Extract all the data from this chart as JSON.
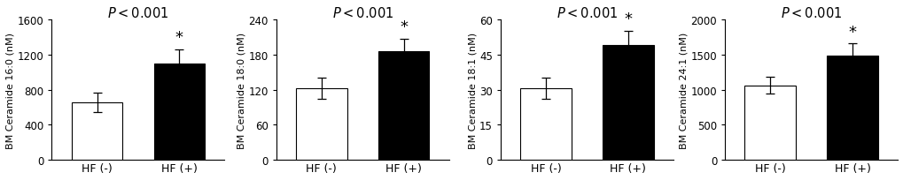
{
  "panels": [
    {
      "ylabel": "BM Ceramide 16:0 (nM)",
      "title": "$P < 0.001$",
      "ylim": [
        0,
        1600
      ],
      "yticks": [
        0,
        400,
        800,
        1200,
        1600
      ],
      "bars": [
        {
          "label": "HF (-)",
          "value": 660,
          "err": 110,
          "color": "white"
        },
        {
          "label": "HF (+)",
          "value": 1100,
          "err": 160,
          "color": "black"
        }
      ],
      "star_bar": 1
    },
    {
      "ylabel": "BM Ceramide 18:0 (nM)",
      "title": "$P < 0.001$",
      "ylim": [
        0,
        240
      ],
      "yticks": [
        0,
        60,
        120,
        180,
        240
      ],
      "bars": [
        {
          "label": "HF (-)",
          "value": 122,
          "err": 18,
          "color": "white"
        },
        {
          "label": "HF (+)",
          "value": 185,
          "err": 22,
          "color": "black"
        }
      ],
      "star_bar": 1
    },
    {
      "ylabel": "BM Ceramide 18:1 (nM)",
      "title": "$P < 0.001$",
      "ylim": [
        0,
        60
      ],
      "yticks": [
        0,
        15,
        30,
        45,
        60
      ],
      "bars": [
        {
          "label": "HF (-)",
          "value": 30.5,
          "err": 4.5,
          "color": "white"
        },
        {
          "label": "HF (+)",
          "value": 49,
          "err": 6,
          "color": "black"
        }
      ],
      "star_bar": 1
    },
    {
      "ylabel": "BM Ceramide 24:1 (nM)",
      "title": "$P < 0.001$",
      "ylim": [
        0,
        2000
      ],
      "yticks": [
        0,
        500,
        1000,
        1500,
        2000
      ],
      "bars": [
        {
          "label": "HF (-)",
          "value": 1060,
          "err": 120,
          "color": "white"
        },
        {
          "label": "HF (+)",
          "value": 1490,
          "err": 165,
          "color": "black"
        }
      ],
      "star_bar": 1
    }
  ],
  "bar_width": 0.62,
  "edgecolor": "black",
  "title_fontsize": 10.5,
  "ylabel_fontsize": 8.0,
  "tick_fontsize": 8.5,
  "xlabel_fontsize": 9.0,
  "star_fontsize": 13,
  "figure_bg": "white"
}
